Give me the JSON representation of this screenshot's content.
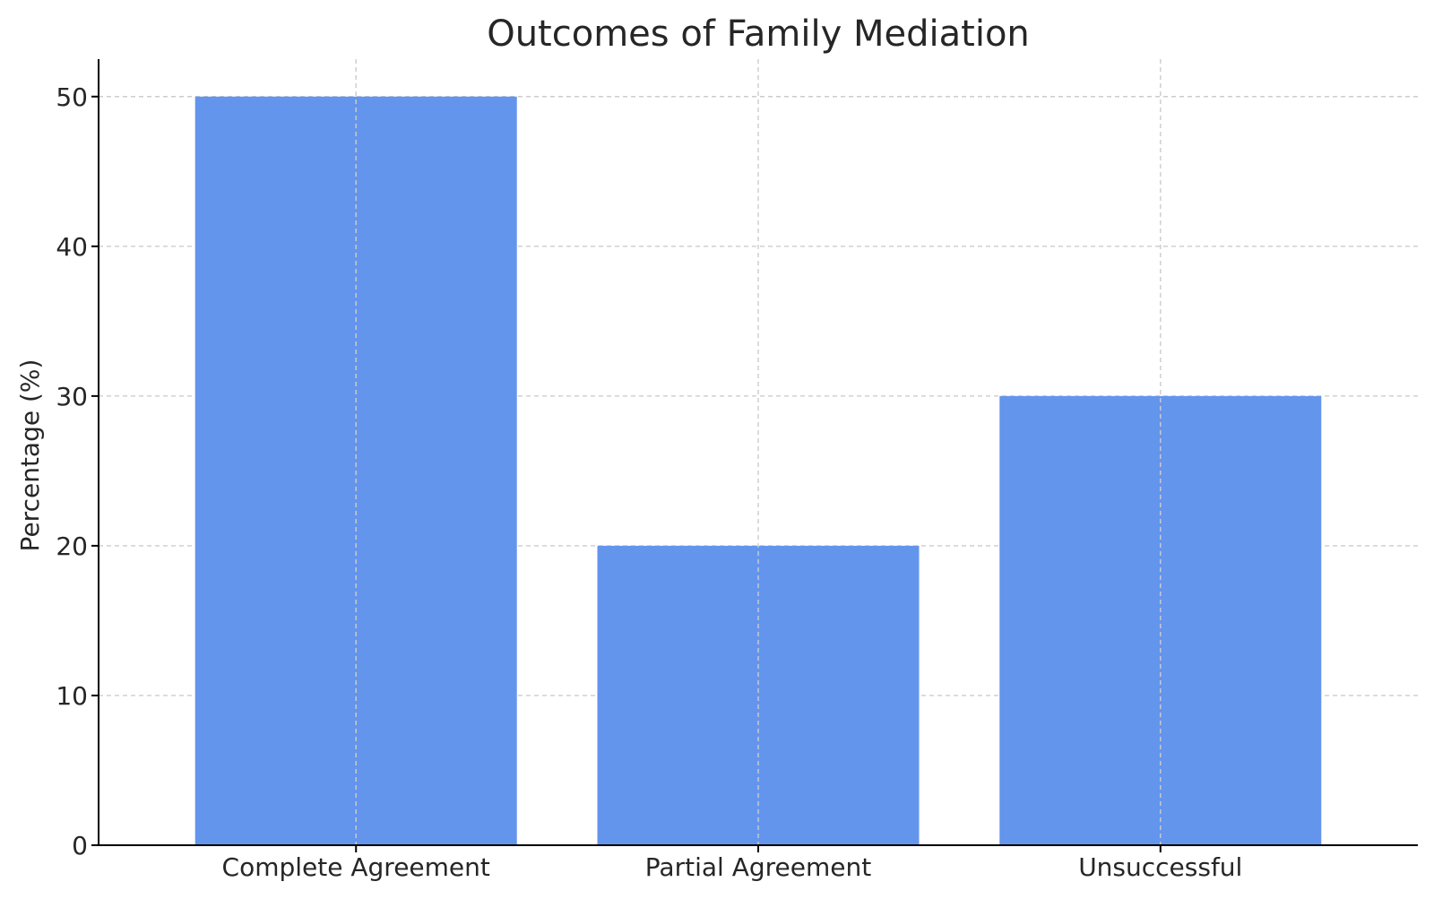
{
  "chart_data": {
    "type": "bar",
    "title": "Outcomes of Family Mediation",
    "xlabel": "",
    "ylabel": "Percentage (%)",
    "categories": [
      "Complete Agreement",
      "Partial Agreement",
      "Unsuccessful"
    ],
    "values": [
      50,
      20,
      30
    ],
    "ylim": [
      0,
      52.5
    ],
    "yticks": [
      0,
      10,
      20,
      30,
      40,
      50
    ],
    "grid": true,
    "bar_color": "#6495ED"
  }
}
